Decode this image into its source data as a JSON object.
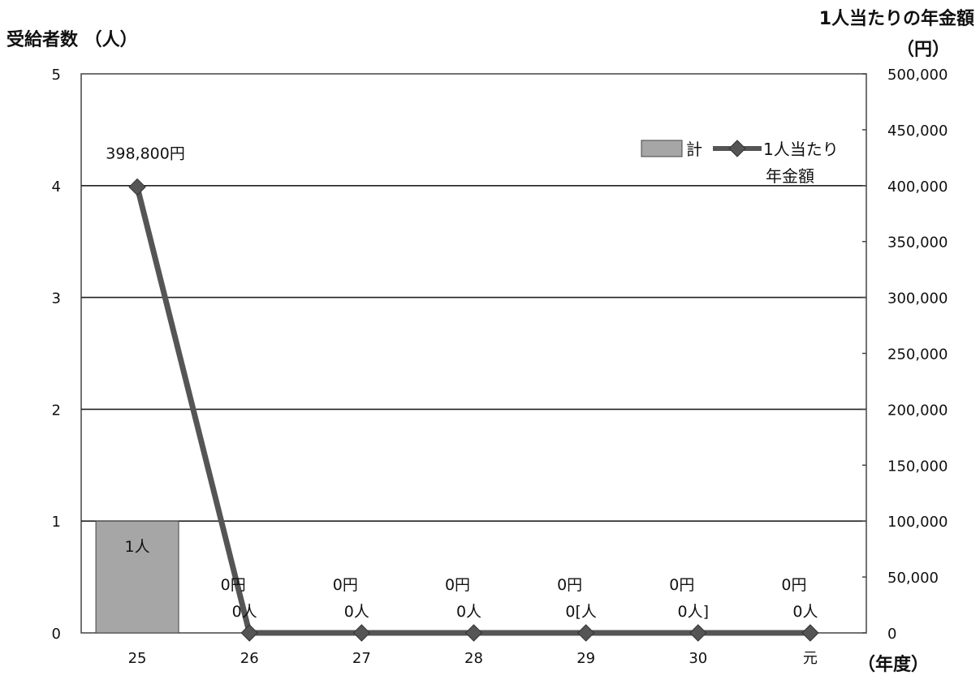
{
  "chart_data": {
    "type": "bar",
    "categories": [
      "25",
      "26",
      "27",
      "28",
      "29",
      "30",
      "元"
    ],
    "series": [
      {
        "name": "計",
        "type": "bar",
        "axis": "left",
        "values": [
          1,
          0,
          0,
          0,
          0,
          0,
          0
        ],
        "labels": [
          "1人",
          "0人",
          "0人",
          "0人",
          "0[人",
          "0人]",
          "0人"
        ],
        "color": "#a6a6a6"
      },
      {
        "name": "1人当たり年金額",
        "legend_lines": [
          "1人当たり",
          "年金額"
        ],
        "type": "line",
        "axis": "right",
        "values": [
          398800,
          0,
          0,
          0,
          0,
          0,
          0
        ],
        "labels": [
          "398,800円",
          "0円",
          "0円",
          "0円",
          "0円",
          "0円",
          "0円"
        ],
        "color": "#555555"
      }
    ],
    "ylabel_left": "受給者数 （人）",
    "ylabel_right_lines": [
      "1人当たりの年金額",
      "（円）"
    ],
    "xlabel": "（年度）",
    "ylim_left": [
      0,
      5
    ],
    "ylim_right": [
      0,
      500000
    ],
    "yticks_left": [
      "0",
      "1",
      "2",
      "3",
      "4",
      "5"
    ],
    "yticks_right": [
      "0",
      "50,000",
      "100,000",
      "150,000",
      "200,000",
      "250,000",
      "300,000",
      "350,000",
      "400,000",
      "450,000",
      "500,000"
    ],
    "grid": "horizontal",
    "legend_position": "top-right"
  }
}
